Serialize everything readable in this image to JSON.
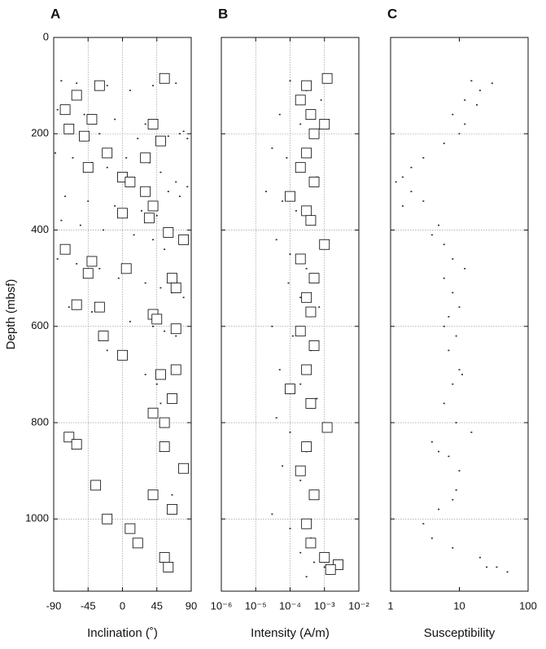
{
  "chart_data": [
    {
      "type": "scatter",
      "panel_label": "A",
      "xlabel": "Inclination (˚)",
      "ylabel": "Depth (mbsf)",
      "xscale": "linear",
      "xlim": [
        -90,
        90
      ],
      "xticks": [
        -90,
        -45,
        0,
        45,
        90
      ],
      "ylim": [
        1150,
        0
      ],
      "yticks": [
        0,
        200,
        400,
        600,
        800,
        1000
      ],
      "show_ytick_labels": true,
      "xgrid": true,
      "ygrid": true,
      "series": [
        {
          "marker": "dot",
          "color": "#3b1c1c",
          "x": [
            -80,
            -60,
            -20,
            10,
            40,
            70,
            -85,
            -50,
            -10,
            30,
            75,
            85,
            -70,
            -30,
            20,
            60,
            80,
            -88,
            -65,
            -40,
            -20,
            5,
            35,
            50,
            70,
            85,
            -75,
            -45,
            -10,
            25,
            45,
            60,
            75,
            -80,
            -55,
            -25,
            15,
            40,
            55,
            -85,
            -60,
            -30,
            -5,
            30,
            50,
            65,
            80,
            -70,
            -40,
            10,
            40,
            55,
            70,
            -20,
            30,
            45,
            50,
            60,
            65,
            55
          ],
          "y": [
            90,
            95,
            100,
            110,
            100,
            95,
            150,
            160,
            170,
            180,
            200,
            210,
            190,
            200,
            210,
            205,
            195,
            240,
            250,
            260,
            270,
            250,
            260,
            280,
            300,
            310,
            330,
            340,
            350,
            360,
            370,
            320,
            330,
            380,
            390,
            400,
            410,
            420,
            440,
            460,
            470,
            480,
            500,
            510,
            520,
            530,
            540,
            560,
            570,
            590,
            600,
            610,
            620,
            650,
            700,
            720,
            760,
            850,
            950,
            1080
          ]
        },
        {
          "marker": "square",
          "color": "#000000",
          "x": [
            55,
            -30,
            -60,
            -75,
            -40,
            -70,
            -50,
            50,
            40,
            -20,
            30,
            -45,
            0,
            10,
            30,
            40,
            0,
            35,
            60,
            80,
            -75,
            -40,
            5,
            65,
            -45,
            70,
            -60,
            -30,
            40,
            45,
            70,
            -25,
            0,
            70,
            50,
            65,
            40,
            55,
            -70,
            -60,
            55,
            80,
            -35,
            40,
            65,
            -20,
            10,
            20,
            55,
            60
          ],
          "y": [
            85,
            100,
            120,
            150,
            170,
            190,
            205,
            215,
            180,
            240,
            250,
            270,
            290,
            300,
            320,
            350,
            365,
            375,
            405,
            420,
            440,
            465,
            480,
            500,
            490,
            520,
            555,
            560,
            575,
            585,
            605,
            620,
            660,
            690,
            700,
            750,
            780,
            800,
            830,
            845,
            850,
            895,
            930,
            950,
            980,
            1000,
            1020,
            1050,
            1080,
            1100
          ]
        }
      ]
    },
    {
      "type": "scatter",
      "panel_label": "B",
      "xlabel": "Intensity (A/m)",
      "xscale": "log",
      "xlim": [
        1e-06,
        0.01
      ],
      "xticks": [
        {
          "value": 1e-06,
          "label": "10⁻⁶"
        },
        {
          "value": 1e-05,
          "label": "10⁻⁵"
        },
        {
          "value": 0.0001,
          "label": "10⁻⁴"
        },
        {
          "value": 0.001,
          "label": "10⁻³"
        },
        {
          "value": 0.01,
          "label": "10⁻²"
        }
      ],
      "ylim": [
        1150,
        0
      ],
      "yticks": [
        0,
        200,
        400,
        600,
        800,
        1000
      ],
      "show_ytick_labels": false,
      "xgrid": true,
      "ygrid": true,
      "series": [
        {
          "marker": "dot",
          "color": "#3b1c1c",
          "x": [
            0.0001,
            0.0003,
            0.0008,
            5e-05,
            0.0002,
            0.0005,
            3e-05,
            8e-05,
            0.0002,
            0.0006,
            2e-05,
            6e-05,
            0.00015,
            0.0004,
            4e-05,
            0.0001,
            0.0003,
            9e-05,
            0.0002,
            0.0007,
            3e-05,
            0.00012,
            0.0004,
            5e-05,
            0.0002,
            0.0006,
            4e-05,
            0.0001,
            0.0003,
            6e-05,
            0.0002,
            0.0005,
            3e-05,
            0.0001,
            0.0004,
            0.0002,
            0.0005,
            0.001,
            0.0015,
            0.0003
          ],
          "y": [
            90,
            110,
            130,
            160,
            180,
            200,
            230,
            250,
            270,
            290,
            320,
            340,
            360,
            380,
            420,
            450,
            480,
            510,
            540,
            560,
            600,
            620,
            650,
            690,
            720,
            750,
            790,
            820,
            860,
            890,
            920,
            950,
            990,
            1020,
            1040,
            1070,
            1090,
            1100,
            1110,
            1120
          ]
        },
        {
          "marker": "square",
          "color": "#000000",
          "x": [
            0.0012,
            0.0003,
            0.0002,
            0.0004,
            0.001,
            0.0005,
            0.0003,
            0.0002,
            0.0005,
            0.0001,
            0.0003,
            0.0004,
            0.001,
            0.0002,
            0.0005,
            0.0003,
            0.0004,
            0.0002,
            0.0005,
            0.0003,
            0.0001,
            0.0004,
            0.0012,
            0.0003,
            0.0002,
            0.0005,
            0.0003,
            0.0004,
            0.001,
            0.0025,
            0.0015
          ],
          "y": [
            85,
            100,
            130,
            160,
            180,
            200,
            240,
            270,
            300,
            330,
            360,
            380,
            430,
            460,
            500,
            540,
            570,
            610,
            640,
            690,
            730,
            760,
            810,
            850,
            900,
            950,
            1010,
            1050,
            1080,
            1095,
            1105
          ]
        }
      ]
    },
    {
      "type": "scatter",
      "panel_label": "C",
      "xlabel": "Susceptibility",
      "xscale": "log",
      "xlim": [
        1,
        100
      ],
      "xticks": [
        1,
        10,
        100
      ],
      "ylim": [
        1150,
        0
      ],
      "yticks": [
        0,
        200,
        400,
        600,
        800,
        1000
      ],
      "show_ytick_labels": false,
      "xgrid": false,
      "ygrid": true,
      "series": [
        {
          "marker": "dot",
          "color": "#3b1c1c",
          "x": [
            15,
            20,
            12,
            8,
            10,
            6,
            3,
            1.5,
            2,
            3,
            1.5,
            5,
            6,
            8,
            12,
            6,
            8,
            10,
            6,
            9,
            7,
            10,
            8,
            6,
            9,
            15,
            4,
            7,
            10,
            9,
            5,
            3,
            4,
            8,
            20,
            35,
            50,
            25,
            30,
            18,
            12,
            2,
            1.2,
            4,
            7,
            11,
            5,
            8
          ],
          "y": [
            90,
            110,
            130,
            160,
            200,
            220,
            250,
            290,
            320,
            340,
            350,
            390,
            430,
            460,
            480,
            500,
            530,
            560,
            600,
            620,
            650,
            690,
            720,
            760,
            800,
            820,
            840,
            870,
            900,
            940,
            980,
            1010,
            1040,
            1060,
            1080,
            1100,
            1110,
            1100,
            95,
            140,
            180,
            270,
            300,
            410,
            580,
            700,
            860,
            960
          ]
        }
      ]
    }
  ]
}
